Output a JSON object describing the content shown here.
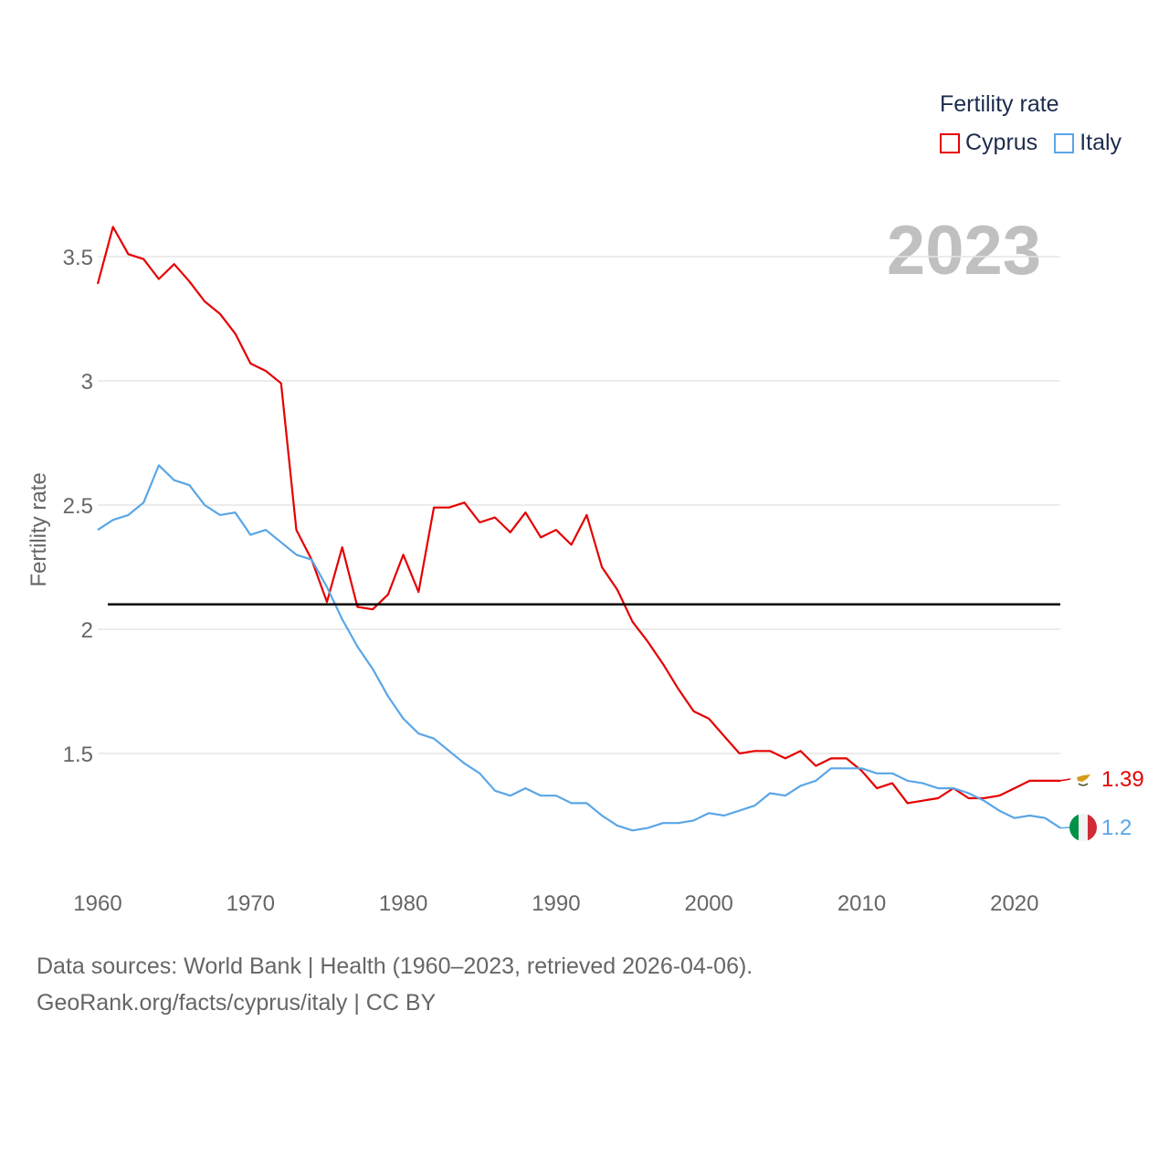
{
  "legend": {
    "title": "Fertility rate",
    "items": [
      {
        "label": "Cyprus",
        "color": "#e50000"
      },
      {
        "label": "Italy",
        "color": "#5aa6e6"
      }
    ]
  },
  "footer": {
    "line1": "Data sources: World Bank | Health (1960–2023, retrieved 2026-04-06).",
    "line2": "GeoRank.org/facts/cyprus/italy | CC BY"
  },
  "chart_data": {
    "type": "line",
    "year_label": "2023",
    "ylabel": "Fertility rate",
    "xlabel": "",
    "xlim": [
      1960,
      2023
    ],
    "ylim": [
      1.0,
      3.75
    ],
    "x_ticks": [
      1960,
      1970,
      1980,
      1990,
      2000,
      2010,
      2020
    ],
    "y_ticks": [
      1.5,
      2,
      2.5,
      3,
      3.5
    ],
    "y_tick_labels": [
      "1.5",
      "2",
      "2.5",
      "3",
      "3.5"
    ],
    "reference_line": {
      "value": 2.1,
      "color": "#000000"
    },
    "x": [
      1960,
      1961,
      1962,
      1963,
      1964,
      1965,
      1966,
      1967,
      1968,
      1969,
      1970,
      1971,
      1972,
      1973,
      1974,
      1975,
      1976,
      1977,
      1978,
      1979,
      1980,
      1981,
      1982,
      1983,
      1984,
      1985,
      1986,
      1987,
      1988,
      1989,
      1990,
      1991,
      1992,
      1993,
      1994,
      1995,
      1996,
      1997,
      1998,
      1999,
      2000,
      2001,
      2002,
      2003,
      2004,
      2005,
      2006,
      2007,
      2008,
      2009,
      2010,
      2011,
      2012,
      2013,
      2014,
      2015,
      2016,
      2017,
      2018,
      2019,
      2020,
      2021,
      2022,
      2023
    ],
    "series": [
      {
        "name": "Cyprus",
        "color": "#e50000",
        "end_label": "1.39",
        "values": [
          3.39,
          3.62,
          3.51,
          3.49,
          3.41,
          3.47,
          3.4,
          3.32,
          3.27,
          3.19,
          3.07,
          3.04,
          2.99,
          2.4,
          2.28,
          2.11,
          2.33,
          2.09,
          2.08,
          2.14,
          2.3,
          2.15,
          2.49,
          2.49,
          2.51,
          2.43,
          2.45,
          2.39,
          2.47,
          2.37,
          2.4,
          2.34,
          2.46,
          2.25,
          2.16,
          2.03,
          1.95,
          1.86,
          1.76,
          1.67,
          1.64,
          1.57,
          1.5,
          1.51,
          1.51,
          1.48,
          1.51,
          1.45,
          1.48,
          1.48,
          1.43,
          1.36,
          1.38,
          1.3,
          1.31,
          1.32,
          1.36,
          1.32,
          1.32,
          1.33,
          1.36,
          1.39,
          1.39,
          1.39
        ]
      },
      {
        "name": "Italy",
        "color": "#5aa6e6",
        "end_label": "1.2",
        "values": [
          2.4,
          2.44,
          2.46,
          2.51,
          2.66,
          2.6,
          2.58,
          2.5,
          2.46,
          2.47,
          2.38,
          2.4,
          2.35,
          2.3,
          2.28,
          2.17,
          2.04,
          1.93,
          1.84,
          1.73,
          1.64,
          1.58,
          1.56,
          1.51,
          1.46,
          1.42,
          1.35,
          1.33,
          1.36,
          1.33,
          1.33,
          1.3,
          1.3,
          1.25,
          1.21,
          1.19,
          1.2,
          1.22,
          1.22,
          1.23,
          1.26,
          1.25,
          1.27,
          1.29,
          1.34,
          1.33,
          1.37,
          1.39,
          1.44,
          1.44,
          1.44,
          1.42,
          1.42,
          1.39,
          1.38,
          1.36,
          1.36,
          1.34,
          1.31,
          1.27,
          1.24,
          1.25,
          1.24,
          1.2
        ]
      }
    ]
  }
}
